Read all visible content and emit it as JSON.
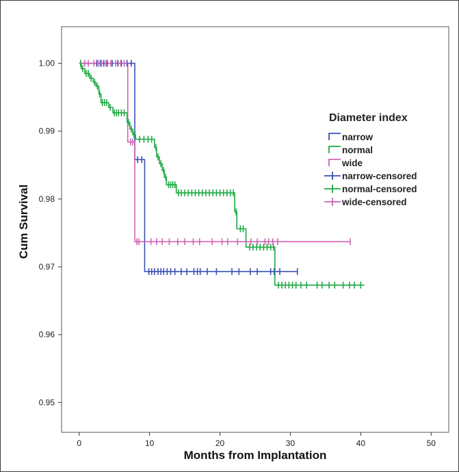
{
  "chart_data": {
    "type": "line",
    "xlabel": "Months from Implantation",
    "ylabel": "Cum Survival",
    "xlim": [
      -2.5,
      52.5
    ],
    "ylim": [
      0.9456,
      1.0054
    ],
    "x_ticks": [
      0,
      10,
      20,
      30,
      40,
      50
    ],
    "x_tick_labels": [
      "0",
      "10",
      "20",
      "30",
      "40",
      "50"
    ],
    "y_ticks": [
      0.95,
      0.96,
      0.97,
      0.98,
      0.99,
      1.0
    ],
    "y_tick_labels": [
      "0.95",
      "0.96",
      "0.97",
      "0.98",
      "0.99",
      "1.00"
    ],
    "grid": false,
    "legend": {
      "title": "Diameter index",
      "position": "right",
      "entries": [
        {
          "label": "narrow",
          "kind": "line",
          "color": "#3a50b4"
        },
        {
          "label": "normal",
          "kind": "line",
          "color": "#1fa844"
        },
        {
          "label": "wide",
          "kind": "line",
          "color": "#d062b0"
        },
        {
          "label": "narrow-censored",
          "kind": "censor",
          "color": "#3a50b4"
        },
        {
          "label": "normal-censored",
          "kind": "censor",
          "color": "#1fa844"
        },
        {
          "label": "wide-censored",
          "kind": "censor",
          "color": "#d062b0"
        }
      ]
    },
    "series": [
      {
        "name": "narrow",
        "color": "#3a50b4",
        "steps": [
          [
            0,
            1.0
          ],
          [
            7.9,
            0.9858
          ],
          [
            9.3,
            0.9693
          ],
          [
            31,
            0.9693
          ]
        ],
        "censored": [
          {
            "x": 2.5,
            "y": 1.0
          },
          {
            "x": 3.0,
            "y": 1.0
          },
          {
            "x": 3.5,
            "y": 1.0
          },
          {
            "x": 4.0,
            "y": 1.0
          },
          {
            "x": 4.7,
            "y": 1.0
          },
          {
            "x": 5.5,
            "y": 1.0
          },
          {
            "x": 6.0,
            "y": 1.0
          },
          {
            "x": 6.8,
            "y": 1.0
          },
          {
            "x": 7.4,
            "y": 1.0
          },
          {
            "x": 8.3,
            "y": 0.9858
          },
          {
            "x": 8.9,
            "y": 0.9858
          },
          {
            "x": 9.9,
            "y": 0.9693
          },
          {
            "x": 10.3,
            "y": 0.9693
          },
          {
            "x": 10.7,
            "y": 0.9693
          },
          {
            "x": 11.2,
            "y": 0.9693
          },
          {
            "x": 11.6,
            "y": 0.9693
          },
          {
            "x": 12.0,
            "y": 0.9693
          },
          {
            "x": 12.5,
            "y": 0.9693
          },
          {
            "x": 13.0,
            "y": 0.9693
          },
          {
            "x": 13.6,
            "y": 0.9693
          },
          {
            "x": 14.5,
            "y": 0.9693
          },
          {
            "x": 15.3,
            "y": 0.9693
          },
          {
            "x": 16.3,
            "y": 0.9693
          },
          {
            "x": 16.8,
            "y": 0.9693
          },
          {
            "x": 17.2,
            "y": 0.9693
          },
          {
            "x": 18.2,
            "y": 0.9693
          },
          {
            "x": 19.5,
            "y": 0.9693
          },
          {
            "x": 21.7,
            "y": 0.9693
          },
          {
            "x": 22.7,
            "y": 0.9693
          },
          {
            "x": 24.3,
            "y": 0.9693
          },
          {
            "x": 25.3,
            "y": 0.9693
          },
          {
            "x": 27.2,
            "y": 0.9693
          },
          {
            "x": 27.7,
            "y": 0.9693
          },
          {
            "x": 28.5,
            "y": 0.9693
          },
          {
            "x": 31.0,
            "y": 0.9693
          }
        ]
      },
      {
        "name": "normal",
        "color": "#1fa844",
        "steps": [
          [
            0,
            1.0
          ],
          [
            0.3,
            0.9992
          ],
          [
            0.8,
            0.9985
          ],
          [
            1.5,
            0.9978
          ],
          [
            2.0,
            0.9972
          ],
          [
            2.4,
            0.9966
          ],
          [
            2.8,
            0.9955
          ],
          [
            3.1,
            0.9942
          ],
          [
            4.2,
            0.9935
          ],
          [
            4.8,
            0.9927
          ],
          [
            6.8,
            0.9913
          ],
          [
            7.2,
            0.9903
          ],
          [
            7.6,
            0.9895
          ],
          [
            8.0,
            0.9888
          ],
          [
            10.7,
            0.9876
          ],
          [
            11.0,
            0.9862
          ],
          [
            11.4,
            0.9852
          ],
          [
            11.8,
            0.9842
          ],
          [
            12.1,
            0.9832
          ],
          [
            12.4,
            0.9821
          ],
          [
            13.8,
            0.9809
          ],
          [
            22.1,
            0.9781
          ],
          [
            22.4,
            0.9756
          ],
          [
            23.7,
            0.9729
          ],
          [
            27.8,
            0.9673
          ],
          [
            40.5,
            0.9673
          ]
        ],
        "censored": [
          {
            "x": 0.2,
            "y": 1.0
          },
          {
            "x": 0.5,
            "y": 0.9992
          },
          {
            "x": 1.0,
            "y": 0.9985
          },
          {
            "x": 1.3,
            "y": 0.9985
          },
          {
            "x": 1.7,
            "y": 0.9978
          },
          {
            "x": 2.2,
            "y": 0.9972
          },
          {
            "x": 2.6,
            "y": 0.9966
          },
          {
            "x": 2.9,
            "y": 0.9955
          },
          {
            "x": 3.3,
            "y": 0.9942
          },
          {
            "x": 3.6,
            "y": 0.9942
          },
          {
            "x": 3.9,
            "y": 0.9942
          },
          {
            "x": 4.4,
            "y": 0.9935
          },
          {
            "x": 5.0,
            "y": 0.9927
          },
          {
            "x": 5.3,
            "y": 0.9927
          },
          {
            "x": 5.6,
            "y": 0.9927
          },
          {
            "x": 6.0,
            "y": 0.9927
          },
          {
            "x": 6.4,
            "y": 0.9927
          },
          {
            "x": 7.0,
            "y": 0.9913
          },
          {
            "x": 7.4,
            "y": 0.9903
          },
          {
            "x": 7.8,
            "y": 0.9895
          },
          {
            "x": 8.6,
            "y": 0.9888
          },
          {
            "x": 9.2,
            "y": 0.9888
          },
          {
            "x": 9.8,
            "y": 0.9888
          },
          {
            "x": 10.3,
            "y": 0.9888
          },
          {
            "x": 10.9,
            "y": 0.9876
          },
          {
            "x": 11.2,
            "y": 0.9862
          },
          {
            "x": 11.6,
            "y": 0.9852
          },
          {
            "x": 12.0,
            "y": 0.9842
          },
          {
            "x": 12.3,
            "y": 0.9832
          },
          {
            "x": 12.7,
            "y": 0.9821
          },
          {
            "x": 13.0,
            "y": 0.9821
          },
          {
            "x": 13.3,
            "y": 0.9821
          },
          {
            "x": 13.6,
            "y": 0.9821
          },
          {
            "x": 14.1,
            "y": 0.9809
          },
          {
            "x": 14.5,
            "y": 0.9809
          },
          {
            "x": 15.0,
            "y": 0.9809
          },
          {
            "x": 15.5,
            "y": 0.9809
          },
          {
            "x": 16.0,
            "y": 0.9809
          },
          {
            "x": 16.5,
            "y": 0.9809
          },
          {
            "x": 17.0,
            "y": 0.9809
          },
          {
            "x": 17.5,
            "y": 0.9809
          },
          {
            "x": 18.0,
            "y": 0.9809
          },
          {
            "x": 18.5,
            "y": 0.9809
          },
          {
            "x": 19.0,
            "y": 0.9809
          },
          {
            "x": 19.5,
            "y": 0.9809
          },
          {
            "x": 20.0,
            "y": 0.9809
          },
          {
            "x": 20.5,
            "y": 0.9809
          },
          {
            "x": 21.0,
            "y": 0.9809
          },
          {
            "x": 21.5,
            "y": 0.9809
          },
          {
            "x": 21.9,
            "y": 0.9809
          },
          {
            "x": 22.3,
            "y": 0.9781
          },
          {
            "x": 22.9,
            "y": 0.9756
          },
          {
            "x": 23.3,
            "y": 0.9756
          },
          {
            "x": 24.2,
            "y": 0.9729
          },
          {
            "x": 24.7,
            "y": 0.9729
          },
          {
            "x": 25.2,
            "y": 0.9729
          },
          {
            "x": 25.7,
            "y": 0.9729
          },
          {
            "x": 26.2,
            "y": 0.9729
          },
          {
            "x": 26.7,
            "y": 0.9729
          },
          {
            "x": 27.2,
            "y": 0.9729
          },
          {
            "x": 27.6,
            "y": 0.9729
          },
          {
            "x": 28.3,
            "y": 0.9673
          },
          {
            "x": 28.8,
            "y": 0.9673
          },
          {
            "x": 29.3,
            "y": 0.9673
          },
          {
            "x": 29.8,
            "y": 0.9673
          },
          {
            "x": 30.3,
            "y": 0.9673
          },
          {
            "x": 30.8,
            "y": 0.9673
          },
          {
            "x": 31.5,
            "y": 0.9673
          },
          {
            "x": 32.3,
            "y": 0.9673
          },
          {
            "x": 33.8,
            "y": 0.9673
          },
          {
            "x": 34.5,
            "y": 0.9673
          },
          {
            "x": 35.5,
            "y": 0.9673
          },
          {
            "x": 36.3,
            "y": 0.9673
          },
          {
            "x": 37.5,
            "y": 0.9673
          },
          {
            "x": 38.4,
            "y": 0.9673
          },
          {
            "x": 39.1,
            "y": 0.9673
          },
          {
            "x": 40.0,
            "y": 0.9673
          }
        ]
      },
      {
        "name": "wide",
        "color": "#d062b0",
        "steps": [
          [
            0,
            1.0
          ],
          [
            6.9,
            0.9884
          ],
          [
            7.9,
            0.9737
          ],
          [
            38.5,
            0.9737
          ]
        ],
        "censored": [
          {
            "x": 0.8,
            "y": 1.0
          },
          {
            "x": 1.3,
            "y": 1.0
          },
          {
            "x": 2.1,
            "y": 1.0
          },
          {
            "x": 2.7,
            "y": 1.0
          },
          {
            "x": 3.2,
            "y": 1.0
          },
          {
            "x": 3.8,
            "y": 1.0
          },
          {
            "x": 4.5,
            "y": 1.0
          },
          {
            "x": 5.2,
            "y": 1.0
          },
          {
            "x": 5.9,
            "y": 1.0
          },
          {
            "x": 6.4,
            "y": 1.0
          },
          {
            "x": 7.3,
            "y": 0.9884
          },
          {
            "x": 7.6,
            "y": 0.9884
          },
          {
            "x": 8.2,
            "y": 0.9737
          },
          {
            "x": 8.5,
            "y": 0.9737
          },
          {
            "x": 10.2,
            "y": 0.9737
          },
          {
            "x": 11.0,
            "y": 0.9737
          },
          {
            "x": 11.8,
            "y": 0.9737
          },
          {
            "x": 12.8,
            "y": 0.9737
          },
          {
            "x": 14.0,
            "y": 0.9737
          },
          {
            "x": 15.0,
            "y": 0.9737
          },
          {
            "x": 16.2,
            "y": 0.9737
          },
          {
            "x": 17.1,
            "y": 0.9737
          },
          {
            "x": 18.9,
            "y": 0.9737
          },
          {
            "x": 20.3,
            "y": 0.9737
          },
          {
            "x": 21.1,
            "y": 0.9737
          },
          {
            "x": 22.5,
            "y": 0.9737
          },
          {
            "x": 24.4,
            "y": 0.9737
          },
          {
            "x": 25.3,
            "y": 0.9737
          },
          {
            "x": 26.4,
            "y": 0.9737
          },
          {
            "x": 26.9,
            "y": 0.9737
          },
          {
            "x": 27.5,
            "y": 0.9737
          },
          {
            "x": 28.2,
            "y": 0.9737
          },
          {
            "x": 38.5,
            "y": 0.9737
          }
        ]
      }
    ]
  }
}
